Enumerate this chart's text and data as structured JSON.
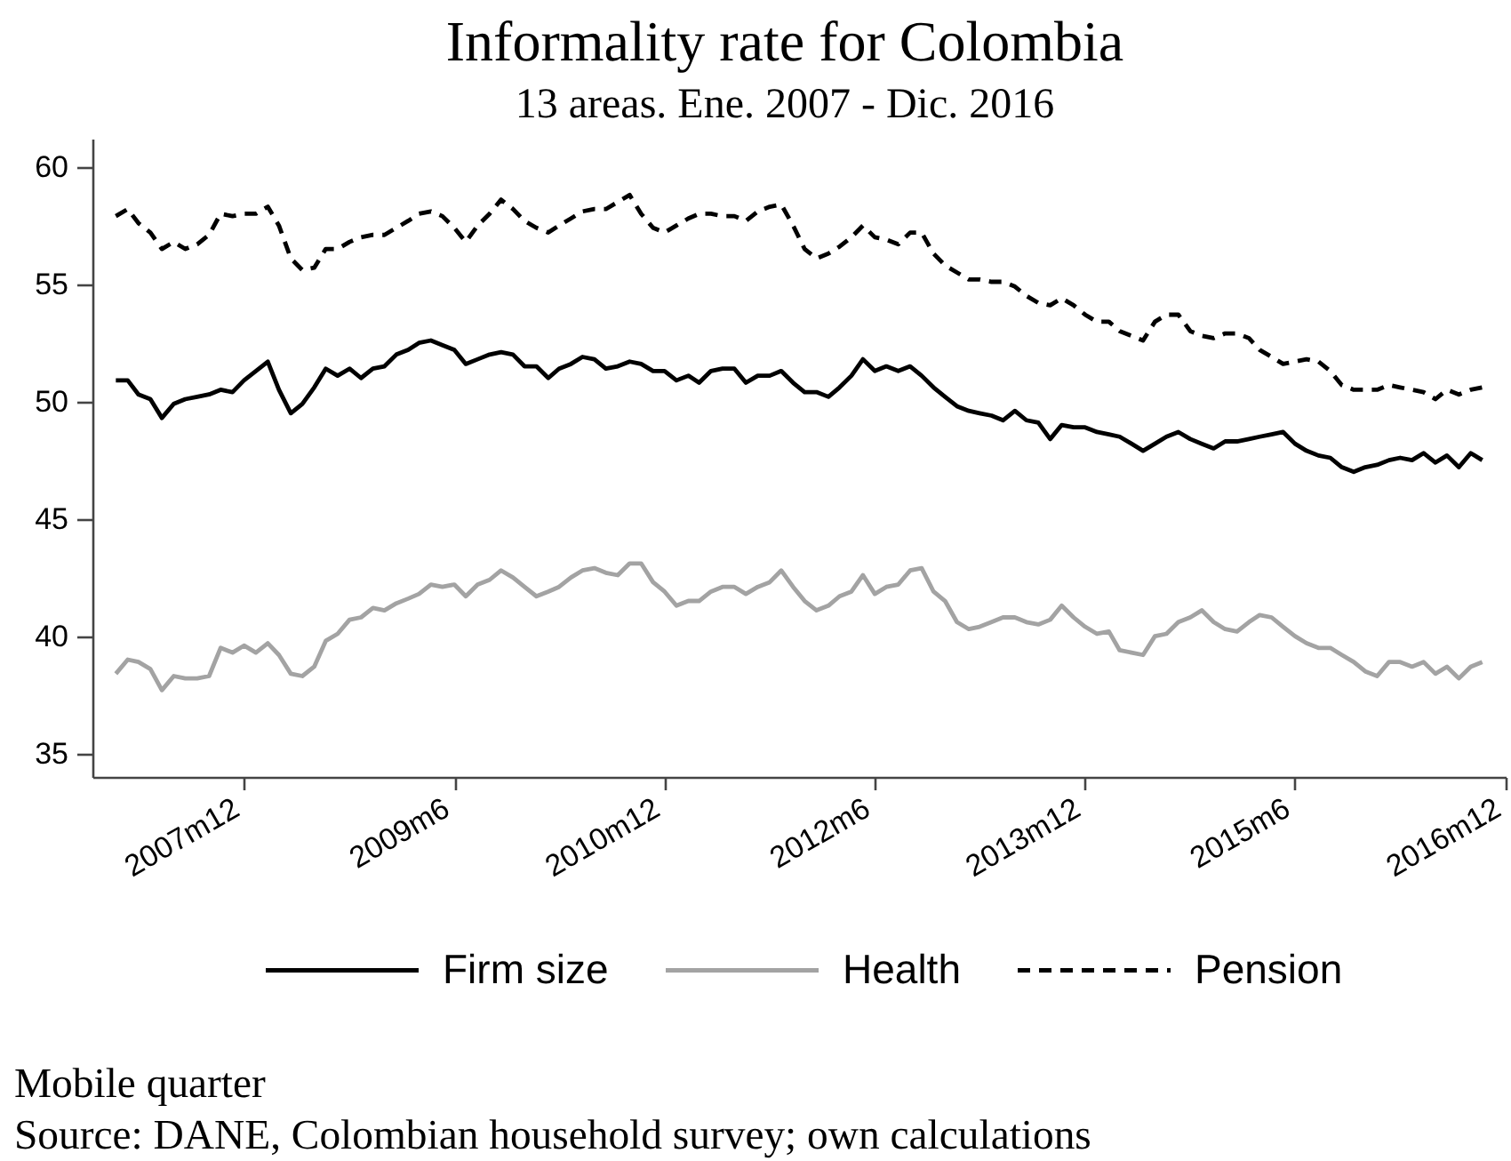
{
  "chart_data": {
    "type": "line",
    "title": "Informality rate for Colombia",
    "subtitle": "13 areas. Ene. 2007 - Dic. 2016",
    "annotations": [
      "Mobile quarter",
      "Source: DANE, Colombian household survey; own calculations"
    ],
    "x": [
      "2007-01",
      "2007-02",
      "2007-03",
      "2007-04",
      "2007-05",
      "2007-06",
      "2007-07",
      "2007-08",
      "2007-09",
      "2007-10",
      "2007-11",
      "2007-12",
      "2008-01",
      "2008-02",
      "2008-03",
      "2008-04",
      "2008-05",
      "2008-06",
      "2008-07",
      "2008-08",
      "2008-09",
      "2008-10",
      "2008-11",
      "2008-12",
      "2009-01",
      "2009-02",
      "2009-03",
      "2009-04",
      "2009-05",
      "2009-06",
      "2009-07",
      "2009-08",
      "2009-09",
      "2009-10",
      "2009-11",
      "2009-12",
      "2010-01",
      "2010-02",
      "2010-03",
      "2010-04",
      "2010-05",
      "2010-06",
      "2010-07",
      "2010-08",
      "2010-09",
      "2010-10",
      "2010-11",
      "2010-12",
      "2011-01",
      "2011-02",
      "2011-03",
      "2011-04",
      "2011-05",
      "2011-06",
      "2011-07",
      "2011-08",
      "2011-09",
      "2011-10",
      "2011-11",
      "2011-12",
      "2012-01",
      "2012-02",
      "2012-03",
      "2012-04",
      "2012-05",
      "2012-06",
      "2012-07",
      "2012-08",
      "2012-09",
      "2012-10",
      "2012-11",
      "2012-12",
      "2013-01",
      "2013-02",
      "2013-03",
      "2013-04",
      "2013-05",
      "2013-06",
      "2013-07",
      "2013-08",
      "2013-09",
      "2013-10",
      "2013-11",
      "2013-12",
      "2014-01",
      "2014-02",
      "2014-03",
      "2014-04",
      "2014-05",
      "2014-06",
      "2014-07",
      "2014-08",
      "2014-09",
      "2014-10",
      "2014-11",
      "2014-12",
      "2015-01",
      "2015-02",
      "2015-03",
      "2015-04",
      "2015-05",
      "2015-06",
      "2015-07",
      "2015-08",
      "2015-09",
      "2015-10",
      "2015-11",
      "2015-12",
      "2016-01",
      "2016-02",
      "2016-03",
      "2016-04",
      "2016-05",
      "2016-06",
      "2016-07",
      "2016-08",
      "2016-09",
      "2016-10"
    ],
    "series": [
      {
        "name": "Firm size",
        "color": "#000000",
        "line_style": "solid",
        "values": [
          50.9,
          50.9,
          50.3,
          50.1,
          49.3,
          49.9,
          50.1,
          50.2,
          50.3,
          50.5,
          50.4,
          50.9,
          51.3,
          51.7,
          50.5,
          49.5,
          49.9,
          50.6,
          51.4,
          51.1,
          51.4,
          51.0,
          51.4,
          51.5,
          52.0,
          52.2,
          52.5,
          52.6,
          52.4,
          52.2,
          51.6,
          51.8,
          52.0,
          52.1,
          52.0,
          51.5,
          51.5,
          51.0,
          51.4,
          51.6,
          51.9,
          51.8,
          51.4,
          51.5,
          51.7,
          51.6,
          51.3,
          51.3,
          50.9,
          51.1,
          50.8,
          51.3,
          51.4,
          51.4,
          50.8,
          51.1,
          51.1,
          51.3,
          50.8,
          50.4,
          50.4,
          50.2,
          50.6,
          51.1,
          51.8,
          51.3,
          51.5,
          51.3,
          51.5,
          51.1,
          50.6,
          50.2,
          49.8,
          49.6,
          49.5,
          49.4,
          49.2,
          49.6,
          49.2,
          49.1,
          48.4,
          49.0,
          48.9,
          48.9,
          48.7,
          48.6,
          48.5,
          48.2,
          47.9,
          48.2,
          48.5,
          48.7,
          48.4,
          48.2,
          48.0,
          48.3,
          48.3,
          48.4,
          48.5,
          48.6,
          48.7,
          48.2,
          47.9,
          47.7,
          47.6,
          47.2,
          47.0,
          47.2,
          47.3,
          47.5,
          47.6,
          47.5,
          47.8,
          47.4,
          47.7,
          47.2,
          47.8,
          47.5
        ]
      },
      {
        "name": "Health",
        "color": "#a3a3a3",
        "line_style": "solid",
        "values": [
          38.4,
          39.0,
          38.9,
          38.6,
          37.7,
          38.3,
          38.2,
          38.2,
          38.3,
          39.5,
          39.3,
          39.6,
          39.3,
          39.7,
          39.2,
          38.4,
          38.3,
          38.7,
          39.8,
          40.1,
          40.7,
          40.8,
          41.2,
          41.1,
          41.4,
          41.6,
          41.8,
          42.2,
          42.1,
          42.2,
          41.7,
          42.2,
          42.4,
          42.8,
          42.5,
          42.1,
          41.7,
          41.9,
          42.1,
          42.5,
          42.8,
          42.9,
          42.7,
          42.6,
          43.1,
          43.1,
          42.3,
          41.9,
          41.3,
          41.5,
          41.5,
          41.9,
          42.1,
          42.1,
          41.8,
          42.1,
          42.3,
          42.8,
          42.1,
          41.5,
          41.1,
          41.3,
          41.7,
          41.9,
          42.6,
          41.8,
          42.1,
          42.2,
          42.8,
          42.9,
          41.9,
          41.5,
          40.6,
          40.3,
          40.4,
          40.6,
          40.8,
          40.8,
          40.6,
          40.5,
          40.7,
          41.3,
          40.8,
          40.4,
          40.1,
          40.2,
          39.4,
          39.3,
          39.2,
          40.0,
          40.1,
          40.6,
          40.8,
          41.1,
          40.6,
          40.3,
          40.2,
          40.6,
          40.9,
          40.8,
          40.4,
          40.0,
          39.7,
          39.5,
          39.5,
          39.2,
          38.9,
          38.5,
          38.3,
          38.9,
          38.9,
          38.7,
          38.9,
          38.4,
          38.7,
          38.2,
          38.7,
          38.9
        ]
      },
      {
        "name": "Pension",
        "color": "#000000",
        "line_style": "dashed",
        "values": [
          57.9,
          58.2,
          57.6,
          57.2,
          56.5,
          56.8,
          56.5,
          56.7,
          57.1,
          58.0,
          57.9,
          58.0,
          58.0,
          58.3,
          57.5,
          56.1,
          55.6,
          55.7,
          56.5,
          56.5,
          56.8,
          57.0,
          57.1,
          57.1,
          57.4,
          57.7,
          58.0,
          58.1,
          57.9,
          57.4,
          56.8,
          57.5,
          58.0,
          58.6,
          58.2,
          57.7,
          57.4,
          57.2,
          57.5,
          57.8,
          58.1,
          58.2,
          58.2,
          58.5,
          58.8,
          58.0,
          57.4,
          57.2,
          57.5,
          57.8,
          58.0,
          58.0,
          57.9,
          57.9,
          57.7,
          58.1,
          58.3,
          58.4,
          57.5,
          56.5,
          56.1,
          56.3,
          56.6,
          57.0,
          57.5,
          57.0,
          56.9,
          56.7,
          57.2,
          57.2,
          56.3,
          55.8,
          55.5,
          55.2,
          55.2,
          55.1,
          55.1,
          54.9,
          54.5,
          54.2,
          54.1,
          54.4,
          54.1,
          53.7,
          53.4,
          53.4,
          53.0,
          52.8,
          52.6,
          53.4,
          53.7,
          53.7,
          53.0,
          52.8,
          52.7,
          52.9,
          52.9,
          52.7,
          52.2,
          51.9,
          51.6,
          51.7,
          51.8,
          51.7,
          51.3,
          50.7,
          50.5,
          50.5,
          50.5,
          50.7,
          50.6,
          50.5,
          50.4,
          50.1,
          50.5,
          50.3,
          50.5,
          50.6
        ]
      }
    ],
    "xlim": [
      "2006-11",
      "2016-12"
    ],
    "xticks": [
      {
        "value": "2007-12",
        "label": "2007m12"
      },
      {
        "value": "2009-06",
        "label": "2009m6"
      },
      {
        "value": "2010-12",
        "label": "2010m12"
      },
      {
        "value": "2012-06",
        "label": "2012m6"
      },
      {
        "value": "2013-12",
        "label": "2013m12"
      },
      {
        "value": "2015-06",
        "label": "2015m6"
      },
      {
        "value": "2016-12",
        "label": "2016m12"
      }
    ],
    "ylim": [
      34,
      61.2
    ],
    "yticks": [
      35,
      40,
      45,
      50,
      55,
      60
    ],
    "legend": "bottom"
  }
}
